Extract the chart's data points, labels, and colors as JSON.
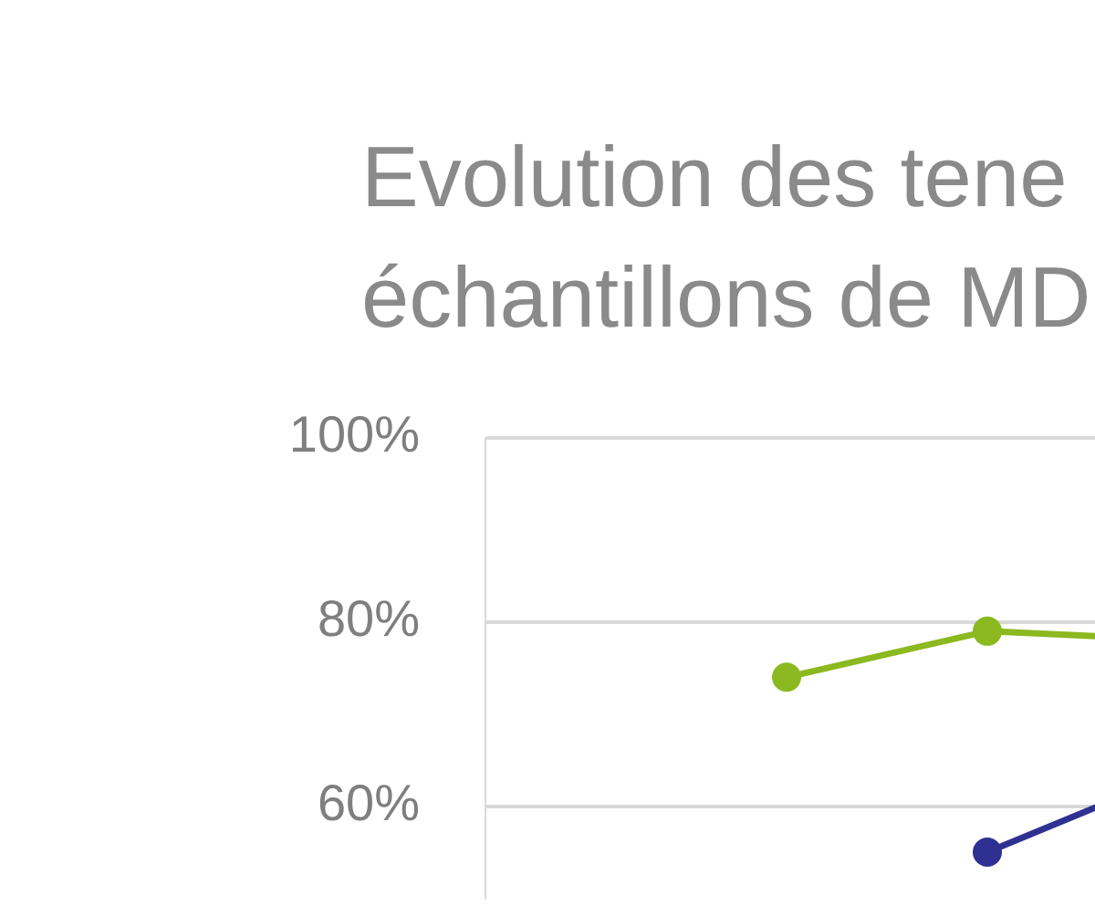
{
  "chart_data": {
    "type": "line",
    "title": "Evolution des tene\néchantillons de MD",
    "categories": [
      null,
      null,
      null,
      null
    ],
    "series": [
      {
        "color": "#8cb820",
        "values": [
          null,
          74,
          79,
          78
        ]
      },
      {
        "color": "#2e3192",
        "values": [
          null,
          null,
          55,
          64
        ]
      }
    ],
    "ylim": [
      50,
      100
    ],
    "yticks": [
      {
        "value": 60,
        "label": "60%"
      },
      {
        "value": 80,
        "label": "80%"
      },
      {
        "value": 100,
        "label": "100%"
      }
    ],
    "grid": "y",
    "legend": false,
    "marker": "circle",
    "line_style": "solid",
    "tick_labels": "y"
  }
}
